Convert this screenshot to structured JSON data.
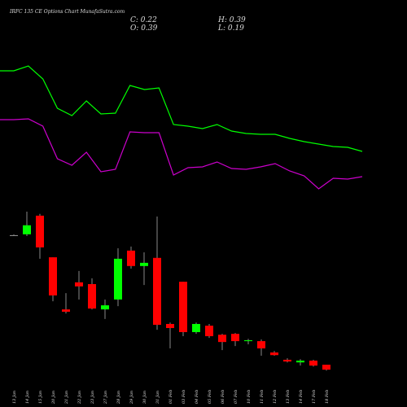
{
  "chart_data": {
    "type": "candlestick",
    "title": "IRFC 135 CE Options Chart MunafaSutra.com",
    "info": [
      "C: 0.22",
      "O: 0.39",
      "H: 0.39",
      "L: 0.19"
    ],
    "categories": [
      "13 Jan",
      "14 Jan",
      "15 Jan",
      "20 Jan",
      "21 Jan",
      "22 Jan",
      "23 Jan",
      "27 Jan",
      "28 Jan",
      "29 Jan",
      "30 Jan",
      "31 Jan",
      "01 Feb",
      "03 Feb",
      "04 Feb",
      "05 Feb",
      "06 Feb",
      "07 Feb",
      "10 Feb",
      "11 Feb",
      "12 Feb",
      "13 Feb",
      "14 Feb",
      "17 Feb",
      "18 Feb"
    ],
    "open": [
      4.84,
      4.87,
      5.51,
      4.08,
      2.29,
      3.22,
      3.16,
      2.29,
      2.63,
      4.31,
      3.78,
      4.06,
      1.79,
      3.24,
      1.51,
      1.73,
      1.42,
      1.45,
      1.2,
      1.2,
      0.81,
      0.56,
      0.47,
      0.53,
      0.39
    ],
    "high": [
      4.87,
      5.65,
      5.57,
      4.08,
      2.85,
      3.61,
      3.36,
      2.63,
      4.39,
      4.45,
      4.25,
      5.48,
      1.84,
      3.24,
      1.84,
      1.79,
      1.45,
      1.48,
      1.28,
      1.26,
      0.86,
      0.61,
      0.58,
      0.56,
      0.39
    ],
    "low": [
      4.84,
      4.81,
      4.03,
      2.57,
      2.15,
      2.63,
      2.29,
      1.96,
      2.4,
      3.69,
      3.13,
      1.59,
      0.95,
      1.37,
      1.45,
      1.31,
      0.89,
      1.03,
      1.09,
      0.7,
      0.7,
      0.47,
      0.36,
      0.33,
      0.19
    ],
    "close": [
      4.84,
      5.18,
      4.42,
      2.77,
      2.21,
      3.08,
      2.32,
      2.43,
      4.03,
      3.78,
      3.89,
      1.76,
      1.65,
      1.51,
      1.79,
      1.37,
      1.17,
      1.2,
      1.23,
      0.95,
      0.72,
      0.5,
      0.53,
      0.36,
      0.22
    ],
    "up_color": "#00ff00",
    "down_color": "#ff0000",
    "flat_color": "#999999",
    "ylim": [
      0,
      5.9
    ],
    "y2lim": [
      0,
      250
    ],
    "series": [
      {
        "color": "#00ff00",
        "axis": "y2",
        "values": [
          163,
          169,
          153,
          117,
          108,
          126,
          110,
          111,
          145,
          140,
          142,
          97,
          95,
          92,
          97,
          89,
          86,
          85,
          85,
          80,
          76,
          73,
          70,
          69,
          64
        ]
      },
      {
        "color": "#cc00cc",
        "axis": "y2",
        "values": [
          103,
          104,
          95,
          55,
          47,
          63,
          39,
          42,
          88,
          87,
          87,
          35,
          44,
          45,
          51,
          43,
          42,
          45,
          49,
          40,
          34,
          18,
          31,
          30,
          33
        ]
      }
    ]
  }
}
